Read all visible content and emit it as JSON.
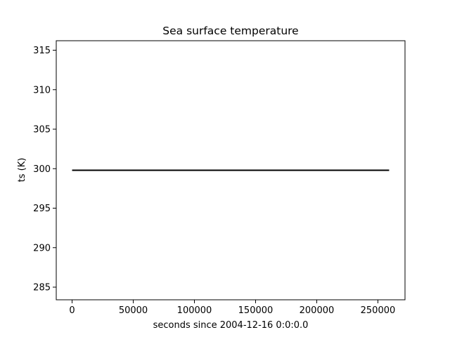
{
  "chart_data": {
    "type": "line",
    "title": "Sea surface temperature",
    "xlabel": "seconds since 2004-12-16 0:0:0.0",
    "ylabel": "ts (K)",
    "xlim": [
      -12960,
      272160
    ],
    "ylim": [
      283.4,
      316.2
    ],
    "xticks": [
      0,
      50000,
      100000,
      150000,
      200000,
      250000
    ],
    "yticks": [
      285,
      290,
      295,
      300,
      305,
      310,
      315
    ],
    "grid": false,
    "series": [
      {
        "color": "#000000",
        "x": [
          0,
          259200
        ],
        "y": [
          299.8,
          299.8
        ]
      }
    ]
  }
}
